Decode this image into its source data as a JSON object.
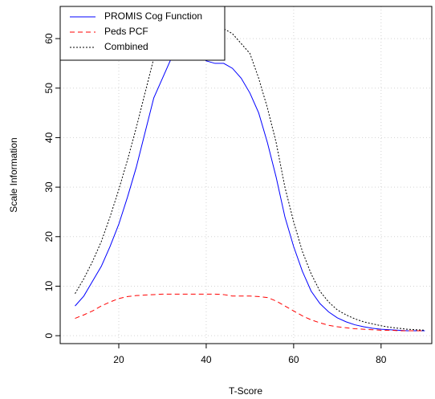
{
  "chart_data": {
    "type": "line",
    "x_label": "T-Score",
    "y_label": "Scale Information",
    "x": [
      10,
      12,
      14,
      16,
      18,
      20,
      22,
      24,
      26,
      28,
      30,
      32,
      34,
      36,
      38,
      40,
      42,
      44,
      46,
      48,
      50,
      52,
      54,
      56,
      58,
      60,
      62,
      64,
      66,
      68,
      70,
      72,
      74,
      76,
      78,
      80,
      82,
      84,
      86,
      88,
      90
    ],
    "series": [
      {
        "name": "PROMIS Cog Function",
        "color": "#0000ff",
        "dash": "solid",
        "values": [
          6,
          8,
          11,
          14,
          18,
          22.5,
          28,
          34,
          41,
          48,
          52,
          56,
          58,
          58.5,
          57,
          55.5,
          55,
          55,
          54,
          52,
          49,
          45,
          39,
          32,
          24,
          18,
          13,
          9,
          6.5,
          4.8,
          3.6,
          2.8,
          2.2,
          1.8,
          1.5,
          1.3,
          1.2,
          1.1,
          1.0,
          1.0,
          1.0
        ]
      },
      {
        "name": "Peds PCF",
        "color": "#ff0000",
        "dash": "dashed",
        "values": [
          3.5,
          4.2,
          5,
          6,
          6.8,
          7.5,
          7.9,
          8.1,
          8.2,
          8.3,
          8.4,
          8.4,
          8.4,
          8.4,
          8.4,
          8.4,
          8.4,
          8.3,
          8,
          8,
          8,
          7.9,
          7.7,
          7,
          6,
          5,
          4,
          3.2,
          2.6,
          2.1,
          1.8,
          1.6,
          1.4,
          1.3,
          1.2,
          1.1,
          1.1,
          1.0,
          1.0,
          1.0,
          1.0
        ]
      },
      {
        "name": "Combined",
        "color": "#000000",
        "dash": "dotted",
        "values": [
          8.5,
          11.5,
          15,
          19,
          24,
          29.5,
          35.5,
          42,
          49,
          56,
          60,
          63,
          65,
          65.5,
          64.5,
          63.5,
          63,
          62,
          61,
          59,
          57,
          52,
          46,
          39,
          30,
          23,
          17,
          12.5,
          9,
          6.8,
          5.2,
          4.2,
          3.4,
          2.8,
          2.4,
          2.0,
          1.7,
          1.5,
          1.3,
          1.2,
          1.1
        ]
      }
    ],
    "xlim": [
      6.6,
      91.6
    ],
    "ylim": [
      -1.6,
      66.5
    ],
    "xticks": [
      20,
      40,
      60,
      80
    ],
    "yticks": [
      0,
      10,
      20,
      30,
      40,
      50,
      60
    ],
    "grid": true,
    "legend_position": "top-left"
  }
}
